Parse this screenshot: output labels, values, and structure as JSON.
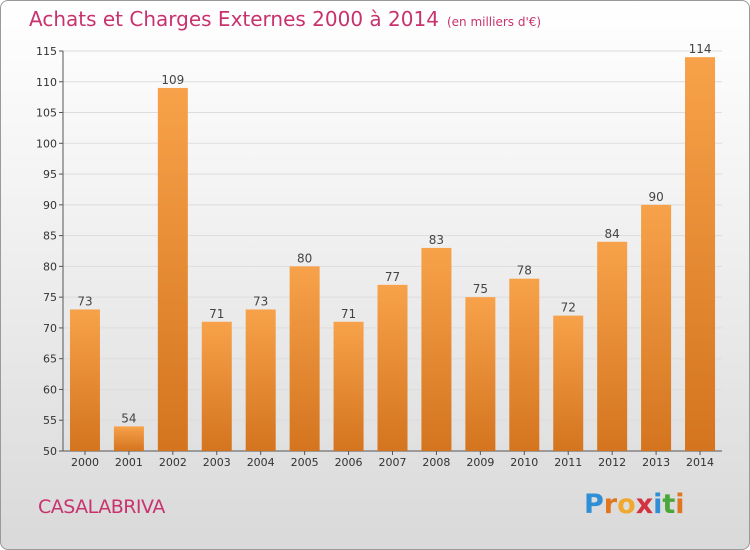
{
  "title": "Achats et Charges Externes 2000 à 2014",
  "unit": "(en milliers d'€)",
  "commune": "CASALABRIVA",
  "logo": {
    "letters": [
      "P",
      "r",
      "o",
      "x",
      "i",
      "t",
      "i"
    ],
    "colors": [
      "#2f8fd6",
      "#e0761f",
      "#f0a92e",
      "#d3323f",
      "#2f8fd6",
      "#4aa83a",
      "#e0761f"
    ]
  },
  "colors": {
    "title": "#c8336e",
    "bar_light": "#f7a24a",
    "bar_dark": "#d4741f",
    "axis": "#555555",
    "grid": "#dddddd"
  },
  "chart_data": {
    "type": "bar",
    "categories": [
      "2000",
      "2001",
      "2002",
      "2003",
      "2004",
      "2005",
      "2006",
      "2007",
      "2008",
      "2009",
      "2010",
      "2011",
      "2012",
      "2013",
      "2014"
    ],
    "values": [
      73,
      54,
      109,
      71,
      73,
      80,
      71,
      77,
      83,
      75,
      78,
      72,
      84,
      90,
      114
    ],
    "ylim": [
      50,
      115
    ],
    "yticks": [
      50,
      55,
      60,
      65,
      70,
      75,
      80,
      85,
      90,
      95,
      100,
      105,
      110,
      115
    ],
    "grid": true,
    "legend": "none"
  }
}
